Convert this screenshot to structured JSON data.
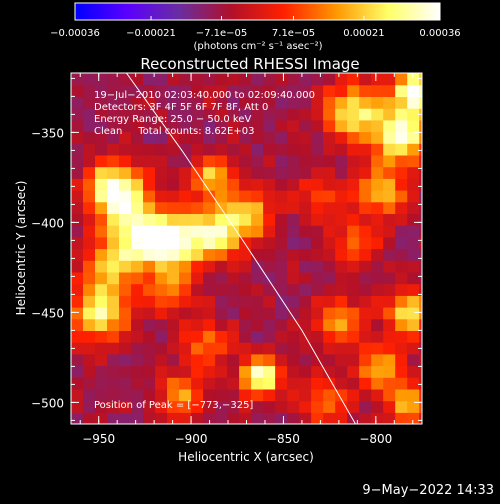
{
  "chart_data": {
    "type": "heatmap",
    "title": "Reconstructed RHESSI Image",
    "xlabel": "Heliocentric X (arcsec)",
    "ylabel": "Heliocentric Y (arcsec)",
    "xlim": [
      -965,
      -775
    ],
    "ylim": [
      -512,
      -317
    ],
    "x_ticks": [
      -950,
      -900,
      -850,
      -800
    ],
    "y_ticks": [
      -350,
      -400,
      -450,
      -500
    ],
    "x_tick_labels": [
      "−950",
      "−900",
      "−850",
      "−800"
    ],
    "y_tick_labels": [
      "−350",
      "−400",
      "−450",
      "−500"
    ],
    "colorbar": {
      "range": [
        -0.00036,
        0.00036
      ],
      "tick_values": [
        -0.00036,
        -0.00021,
        -7.1e-05,
        7.1e-05,
        0.00021,
        0.00036
      ],
      "tick_labels": [
        "−0.00036",
        "−0.00021",
        "−7.1e−05",
        "7.1e−05",
        "0.00021",
        "0.00036"
      ],
      "units": "(photons cm⁻² s⁻¹ asec⁻²)",
      "colormap": [
        "#0000ff",
        "#5a00ff",
        "#6a2da0",
        "#b0102a",
        "#ff2000",
        "#ff9600",
        "#ffff66",
        "#ffffff"
      ]
    },
    "annotations": [
      "19−Jul−2010 02:03:40.000 to 02:09:40.000",
      "Detectors: 3F 4F 5F 6F 7F 8F, Att 0",
      "Energy Range: 25.0 − 50.0 keV",
      "Clean     Total counts: 8.62E+03"
    ],
    "peak_label": "Position of Peak = [−773,−325]",
    "grid": false,
    "limb_curve": [
      [
        -935,
        -317
      ],
      [
        -905,
        -360
      ],
      [
        -872,
        -410
      ],
      [
        -840,
        -460
      ],
      [
        -811,
        -512
      ]
    ],
    "sources": [
      {
        "x": -941,
        "y": -382,
        "intensity": 1.0,
        "spread": 5.0
      },
      {
        "x": -928,
        "y": -408,
        "intensity": 0.85,
        "spread": 5.5
      },
      {
        "x": -908,
        "y": -410,
        "intensity": 0.8,
        "spread": 5.0
      },
      {
        "x": -885,
        "y": -406,
        "intensity": 0.75,
        "spread": 4.5
      },
      {
        "x": -868,
        "y": -395,
        "intensity": 0.6,
        "spread": 4.0
      },
      {
        "x": -888,
        "y": -375,
        "intensity": 0.6,
        "spread": 4.0
      },
      {
        "x": -950,
        "y": -450,
        "intensity": 0.8,
        "spread": 5.0
      },
      {
        "x": -945,
        "y": -425,
        "intensity": 0.55,
        "spread": 4.0
      },
      {
        "x": -912,
        "y": -438,
        "intensity": 0.45,
        "spread": 4.0
      },
      {
        "x": -862,
        "y": -485,
        "intensity": 0.95,
        "spread": 3.5
      },
      {
        "x": -905,
        "y": -495,
        "intensity": 0.55,
        "spread": 4.0
      },
      {
        "x": -892,
        "y": -467,
        "intensity": 0.45,
        "spread": 4.0
      },
      {
        "x": -778,
        "y": -327,
        "intensity": 1.0,
        "spread": 4.0
      },
      {
        "x": -786,
        "y": -352,
        "intensity": 0.85,
        "spread": 5.0
      },
      {
        "x": -812,
        "y": -338,
        "intensity": 0.75,
        "spread": 5.0
      },
      {
        "x": -797,
        "y": -383,
        "intensity": 0.55,
        "spread": 4.5
      },
      {
        "x": -830,
        "y": -385,
        "intensity": 0.35,
        "spread": 4.0
      },
      {
        "x": -812,
        "y": -412,
        "intensity": 0.45,
        "spread": 4.0
      },
      {
        "x": -782,
        "y": -450,
        "intensity": 0.75,
        "spread": 4.0
      },
      {
        "x": -820,
        "y": -455,
        "intensity": 0.6,
        "spread": 4.0
      },
      {
        "x": -798,
        "y": -480,
        "intensity": 0.55,
        "spread": 4.0
      },
      {
        "x": -782,
        "y": -500,
        "intensity": 0.6,
        "spread": 4.0
      },
      {
        "x": -828,
        "y": -500,
        "intensity": 0.45,
        "spread": 4.0
      }
    ]
  },
  "footer": {
    "timestamp": "9−May−2022 14:33"
  }
}
